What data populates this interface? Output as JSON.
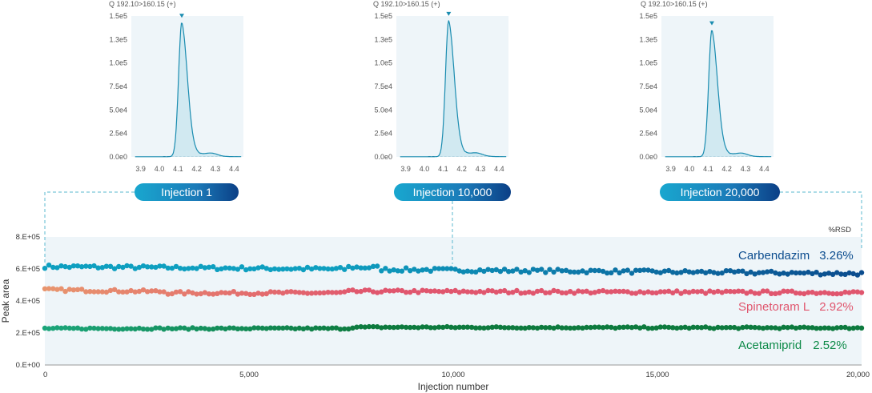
{
  "chart_data": [
    {
      "type": "line",
      "id": "inset-1",
      "title": "Q 192.10>160.15 (+)",
      "x_ticks": [
        "3.9",
        "4.0",
        "4.1",
        "4.2",
        "4.3",
        "4.4"
      ],
      "y_ticks": [
        "0.0e0",
        "2.5e4",
        "5.0e4",
        "7.5e4",
        "1.0e5",
        "1.3e5",
        "1.5e5"
      ],
      "xlim": [
        3.85,
        4.45
      ],
      "ylim": [
        0,
        150000
      ],
      "peak_rt": 4.12,
      "peak_height": 143000,
      "label": "Injection 1"
    },
    {
      "type": "line",
      "id": "inset-10000",
      "title": "Q 192.10>160.15 (+)",
      "x_ticks": [
        "3.9",
        "4.0",
        "4.1",
        "4.2",
        "4.3",
        "4.4"
      ],
      "y_ticks": [
        "0.0e0",
        "2.5e4",
        "5.0e4",
        "7.5e4",
        "1.0e5",
        "1.3e5",
        "1.5e5"
      ],
      "xlim": [
        3.85,
        4.45
      ],
      "ylim": [
        0,
        150000
      ],
      "peak_rt": 4.13,
      "peak_height": 145000,
      "label": "Injection 10,000"
    },
    {
      "type": "line",
      "id": "inset-20000",
      "title": "Q 192.10>160.15 (+)",
      "x_ticks": [
        "3.9",
        "4.0",
        "4.1",
        "4.2",
        "4.3",
        "4.4"
      ],
      "y_ticks": [
        "0.0e0",
        "2.5e4",
        "5.0e4",
        "7.5e4",
        "1.0e5",
        "1.3e5",
        "1.5e5"
      ],
      "xlim": [
        3.85,
        4.45
      ],
      "ylim": [
        0,
        150000
      ],
      "peak_rt": 4.12,
      "peak_height": 135000,
      "label": "Injection 20,000"
    },
    {
      "type": "scatter",
      "id": "main",
      "xlabel": "Injection number",
      "ylabel": "Peak area",
      "x_ticks": [
        "0",
        "5,000",
        "10,000",
        "15,000",
        "20,000"
      ],
      "y_ticks": [
        "0.E+00",
        "2.E+05",
        "4.E+05",
        "6.E+05",
        "8.E+05"
      ],
      "xlim": [
        0,
        20000
      ],
      "ylim": [
        0,
        800000
      ],
      "rsd_header": "%RSD",
      "series": [
        {
          "name": "Carbendazim",
          "rsd": "3.26%",
          "color": "#0e9fc0",
          "color_end": "#0b4c8e",
          "mean": 605000,
          "points": 200
        },
        {
          "name": "Spinetoram L",
          "rsd": "2.92%",
          "color": "#e8956e",
          "color_end": "#e0566e",
          "mean": 455000,
          "points": 200
        },
        {
          "name": "Acetamiprid",
          "rsd": "2.52%",
          "color": "#1ba57a",
          "color_end": "#0d7a3e",
          "mean": 232000,
          "points": 200
        }
      ]
    }
  ]
}
